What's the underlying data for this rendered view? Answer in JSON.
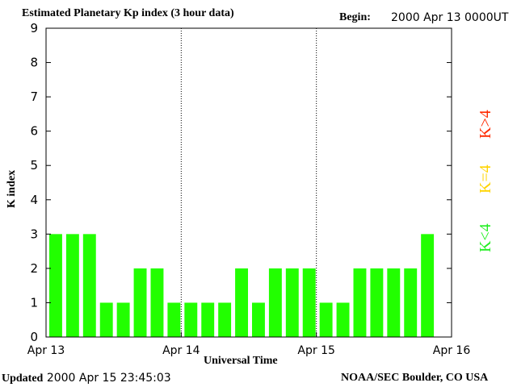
{
  "header": {
    "title": "Estimated Planetary Kp index (3 hour data)",
    "begin_label": "Begin:",
    "begin_value": "2000 Apr 13 0000UT"
  },
  "footer": {
    "updated_label": "Updated",
    "updated_value": "2000 Apr 15 23:45:03",
    "source": "NOAA/SEC Boulder, CO USA"
  },
  "legend": {
    "greater": {
      "text": "K>4",
      "color": "#ff2a00"
    },
    "equal": {
      "text": "K=4",
      "color": "#ffd400"
    },
    "less": {
      "text": "K<4",
      "color": "#22ee22"
    }
  },
  "chart_data": {
    "type": "bar",
    "title": "Estimated Planetary Kp index (3 hour data)",
    "xlabel": "Universal Time",
    "ylabel": "K index",
    "ylim": [
      0,
      9
    ],
    "yticks": [
      "0",
      "1",
      "2",
      "3",
      "4",
      "5",
      "6",
      "7",
      "8",
      "9"
    ],
    "xticks": [
      "Apr 13",
      "Apr 14",
      "Apr 15",
      "Apr 16"
    ],
    "day_separators": [
      "Apr 14",
      "Apr 15"
    ],
    "bar_color": "#22ff00",
    "categories": [
      "Apr 13 00",
      "Apr 13 03",
      "Apr 13 06",
      "Apr 13 09",
      "Apr 13 12",
      "Apr 13 15",
      "Apr 13 18",
      "Apr 13 21",
      "Apr 14 00",
      "Apr 14 03",
      "Apr 14 06",
      "Apr 14 09",
      "Apr 14 12",
      "Apr 14 15",
      "Apr 14 18",
      "Apr 14 21",
      "Apr 15 00",
      "Apr 15 03",
      "Apr 15 06",
      "Apr 15 09",
      "Apr 15 12",
      "Apr 15 15",
      "Apr 15 18",
      "Apr 15 21"
    ],
    "values": [
      3,
      3,
      3,
      1,
      1,
      2,
      2,
      1,
      1,
      1,
      1,
      2,
      1,
      2,
      2,
      2,
      1,
      1,
      2,
      2,
      2,
      2,
      3,
      null
    ]
  }
}
